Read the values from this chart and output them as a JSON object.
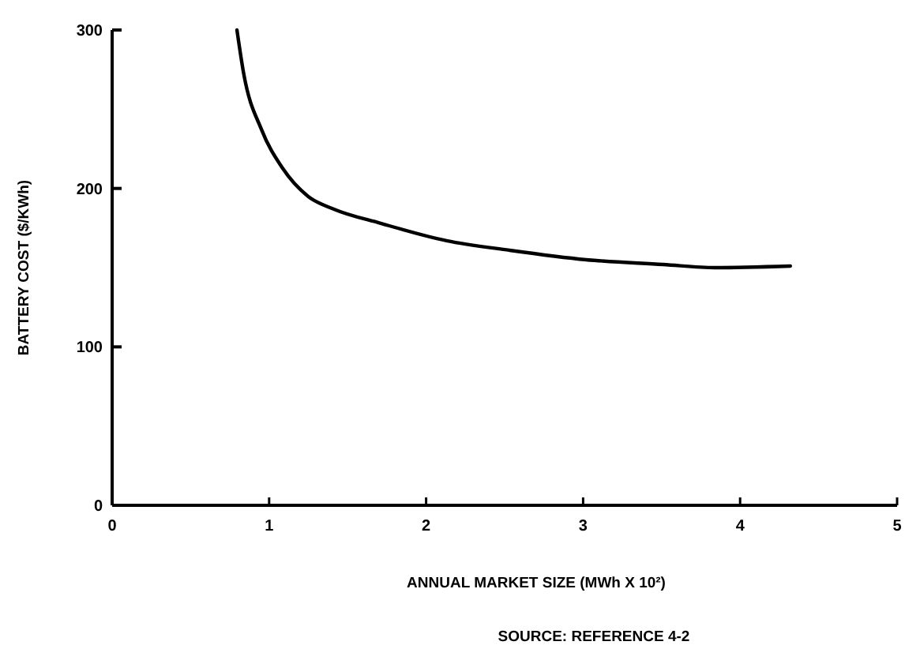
{
  "chart_data": {
    "type": "line",
    "xlabel": "ANNUAL MARKET SIZE (MWh X 10²)",
    "ylabel": "BATTERY COST ($/KWh)",
    "annotations": [
      "SOURCE:  REFERENCE 4-2"
    ],
    "xlim": [
      0,
      5
    ],
    "xticks": [
      0,
      1,
      2,
      3,
      4,
      5
    ],
    "ylim": [
      0,
      300
    ],
    "yticks": [
      0,
      100,
      200,
      300
    ],
    "grid": false,
    "marker": "none",
    "line_style": "solid",
    "series": [
      {
        "color": "#000000",
        "x": [
          0.795,
          0.837,
          0.952,
          1.084,
          1.248,
          1.41,
          1.71,
          2.13,
          2.53,
          3.02,
          3.51,
          3.84,
          4.32
        ],
        "values": [
          300,
          273,
          237,
          213,
          195,
          187,
          178,
          167,
          161,
          155,
          152,
          150,
          151
        ]
      }
    ]
  }
}
